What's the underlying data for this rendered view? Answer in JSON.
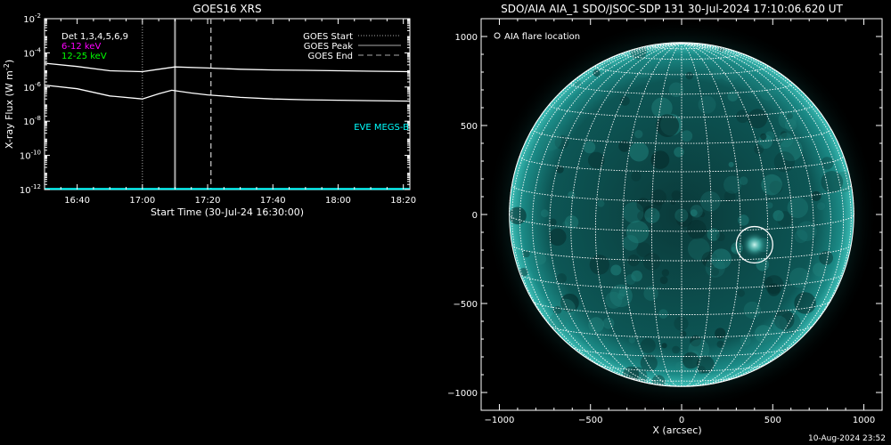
{
  "footer_timestamp": "10-Aug-2024 23:52",
  "chart_data": [
    {
      "type": "line",
      "title": "GOES16 XRS",
      "xlabel": "Start Time (30-Jul-24 16:30:00)",
      "ylabel": "X-ray Flux (W m",
      "ylabel_sup": "-2",
      "ylabel_close": ")",
      "log_scale_y": true,
      "ylim": [
        1e-12,
        0.01
      ],
      "y_ticks": [
        {
          "value": 1e-12,
          "base": "10",
          "exp": "-12"
        },
        {
          "value": 1e-10,
          "base": "10",
          "exp": "-10"
        },
        {
          "value": 1e-08,
          "base": "10",
          "exp": "-8"
        },
        {
          "value": 1e-06,
          "base": "10",
          "exp": "-6"
        },
        {
          "value": 0.0001,
          "base": "10",
          "exp": "-4"
        },
        {
          "value": 0.01,
          "base": "10",
          "exp": "-2"
        }
      ],
      "xlim": [
        "16:30",
        "18:22"
      ],
      "x_ticks": [
        "16:40",
        "17:00",
        "17:20",
        "17:40",
        "18:00",
        "18:20"
      ],
      "legend_left": [
        {
          "text": "Det 1,3,4,5,6,9",
          "color": "#ffffff"
        },
        {
          "text": "6-12 keV",
          "color": "#ff00ff"
        },
        {
          "text": "12-25 keV",
          "color": "#00ff00"
        }
      ],
      "legend_right": [
        {
          "text": "GOES Start",
          "style": "dotted",
          "color": "#aaaaaa"
        },
        {
          "text": "GOES Peak",
          "style": "solid",
          "color": "#aaaaaa"
        },
        {
          "text": "GOES End",
          "style": "dashed",
          "color": "#aaaaaa"
        }
      ],
      "eve_label": "EVE MEGS-B",
      "eve_color": "#00ffff",
      "event_lines": {
        "start": "17:00",
        "peak": "17:10",
        "end": "17:21"
      },
      "series": [
        {
          "color": "#ffffff",
          "points": [
            [
              "16:30",
              2.5e-05
            ],
            [
              "16:40",
              1.6e-05
            ],
            [
              "16:50",
              9e-06
            ],
            [
              "17:00",
              8e-06
            ],
            [
              "17:05",
              1.1e-05
            ],
            [
              "17:10",
              1.5e-05
            ],
            [
              "17:20",
              1.3e-05
            ],
            [
              "17:30",
              1.1e-05
            ],
            [
              "17:40",
              1e-05
            ],
            [
              "17:50",
              9.5e-06
            ],
            [
              "18:00",
              9e-06
            ],
            [
              "18:10",
              8.5e-06
            ],
            [
              "18:22",
              8e-06
            ]
          ]
        },
        {
          "color": "#ffffff",
          "points": [
            [
              "16:30",
              1.3e-06
            ],
            [
              "16:40",
              8e-07
            ],
            [
              "16:50",
              3e-07
            ],
            [
              "17:00",
              2e-07
            ],
            [
              "17:05",
              4e-07
            ],
            [
              "17:09",
              6.5e-07
            ],
            [
              "17:15",
              4.5e-07
            ],
            [
              "17:20",
              3.5e-07
            ],
            [
              "17:30",
              2.5e-07
            ],
            [
              "17:40",
              2e-07
            ],
            [
              "17:50",
              1.8e-07
            ],
            [
              "18:00",
              1.7e-07
            ],
            [
              "18:10",
              1.6e-07
            ],
            [
              "18:22",
              1.5e-07
            ]
          ]
        },
        {
          "color": "#00ffff",
          "points": [
            [
              "16:30",
              1.1e-12
            ],
            [
              "18:22",
              1.1e-12
            ]
          ]
        }
      ]
    },
    {
      "type": "scatter",
      "title": "SDO/AIA AIA_1 SDO/JSOC-SDP 131 30-Jul-2024 17:10:06.620 UT",
      "xlabel": "X (arcsec)",
      "ylabel": "",
      "xlim": [
        -1100,
        1100
      ],
      "ylim": [
        -1100,
        1100
      ],
      "x_ticks": [
        -1000,
        -500,
        0,
        500,
        1000
      ],
      "y_ticks": [
        1000,
        500,
        0,
        -500,
        -1000
      ],
      "solar_radius_arcsec": 945,
      "legend": "AIA flare location",
      "flare_location": {
        "x": 400,
        "y": -170,
        "radius": 100
      },
      "grid": true
    }
  ]
}
